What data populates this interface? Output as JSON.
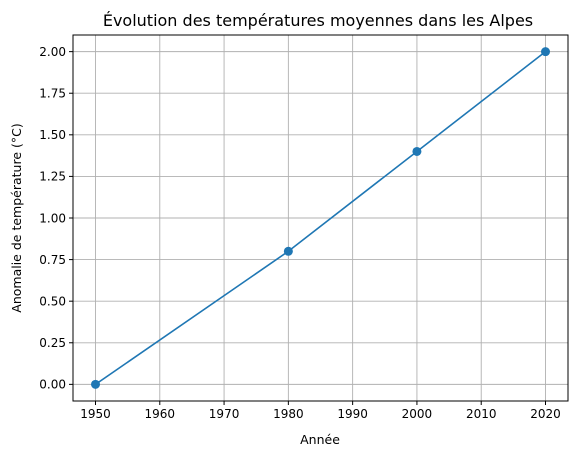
{
  "chart_data": {
    "type": "line",
    "title": "Évolution des températures moyennes dans les Alpes",
    "xlabel": "Année",
    "ylabel": "Anomalie de température (°C)",
    "x": [
      1950,
      1980,
      2000,
      2020
    ],
    "series": [
      {
        "values": [
          0.0,
          0.8,
          1.4,
          2.0
        ],
        "color": "#1f77b4",
        "marker": "circle"
      }
    ],
    "xlim": [
      1946.5,
      2023.5
    ],
    "ylim": [
      -0.1,
      2.1
    ],
    "xticks": [
      1950,
      1960,
      1970,
      1980,
      1990,
      2000,
      2010,
      2020
    ],
    "xtick_labels": [
      "1950",
      "1960",
      "1970",
      "1980",
      "1990",
      "2000",
      "2010",
      "2020"
    ],
    "yticks": [
      0,
      0.25,
      0.5,
      0.75,
      1.0,
      1.25,
      1.5,
      1.75,
      2.0
    ],
    "ytick_labels": [
      "0.00",
      "0.25",
      "0.50",
      "0.75",
      "1.00",
      "1.25",
      "1.50",
      "1.75",
      "2.00"
    ],
    "grid": true,
    "legend": "none"
  }
}
